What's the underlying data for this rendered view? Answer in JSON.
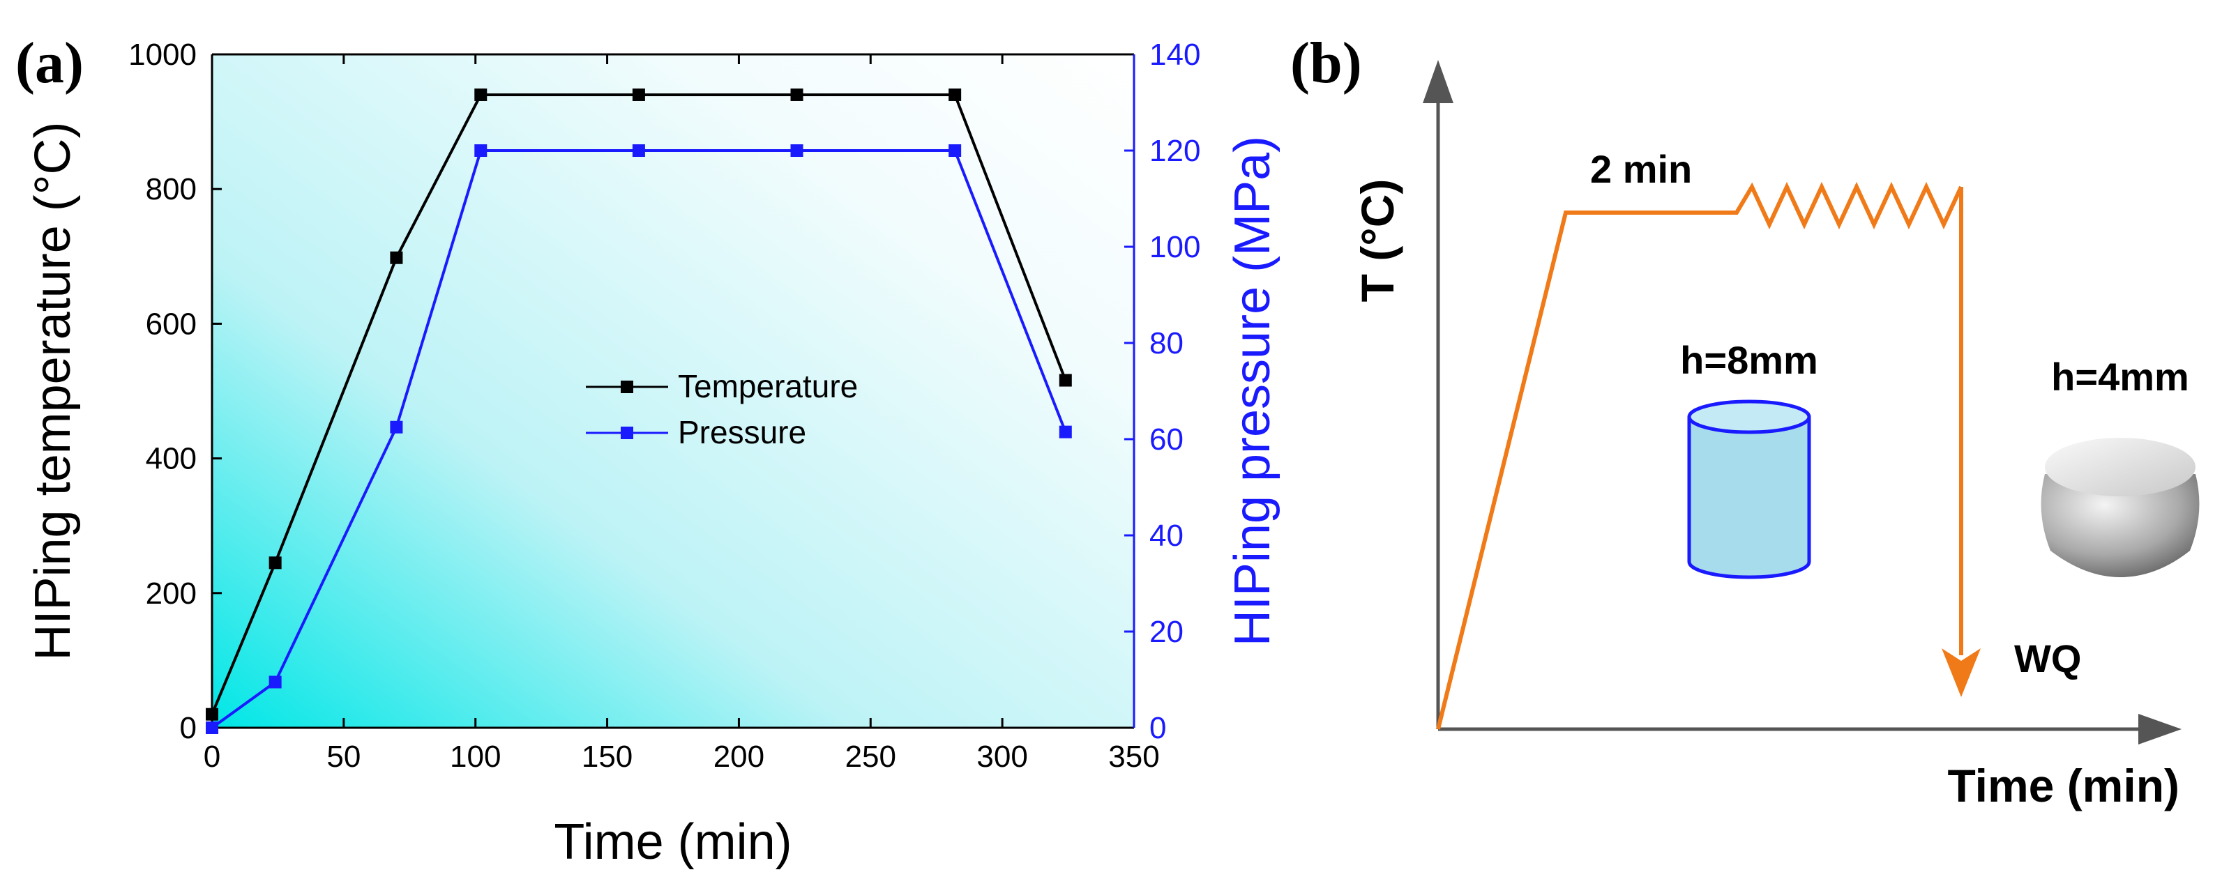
{
  "panel_a_label": "(a)",
  "panel_b_label": "(b)",
  "chart_data": [
    {
      "type": "line",
      "title": "",
      "xlabel": "Time (min)",
      "ylabel": "HIPing temperature (°C)",
      "y2label": "HIPing pressure (MPa)",
      "xlim": [
        0,
        350
      ],
      "ylim": [
        0,
        1000
      ],
      "y2lim": [
        0,
        140
      ],
      "xticks": [
        "0",
        "50",
        "100",
        "150",
        "200",
        "250",
        "300",
        "350"
      ],
      "yticks": [
        "0",
        "200",
        "400",
        "600",
        "800",
        "1000"
      ],
      "y2ticks": [
        "0",
        "20",
        "40",
        "60",
        "80",
        "100",
        "120",
        "140"
      ],
      "legend_position": "center-right",
      "series": [
        {
          "name": "Temperature",
          "axis": "left",
          "color": "#000000",
          "x": [
            0,
            24,
            70,
            102,
            162,
            222,
            282,
            324
          ],
          "values": [
            20,
            245,
            698,
            940,
            940,
            940,
            940,
            516
          ]
        },
        {
          "name": "Pressure",
          "axis": "right",
          "color": "#1a1aff",
          "x": [
            0,
            24,
            70,
            102,
            162,
            222,
            282,
            324
          ],
          "values": [
            0,
            9.5,
            62.5,
            120,
            120,
            120,
            120,
            61.5
          ]
        }
      ]
    },
    {
      "type": "diagram",
      "xlabel": "Time (min)",
      "ylabel": "T (°C)",
      "annotations": {
        "hold": "2 min",
        "quench": "WQ",
        "sample_before": "h=8mm",
        "sample_after": "h=4mm"
      },
      "colors": {
        "profile": "#f07a18",
        "arrow_axes": "#555555",
        "cylinder_fill": "#a6dceb",
        "cylinder_stroke": "#1a1aff"
      }
    }
  ]
}
